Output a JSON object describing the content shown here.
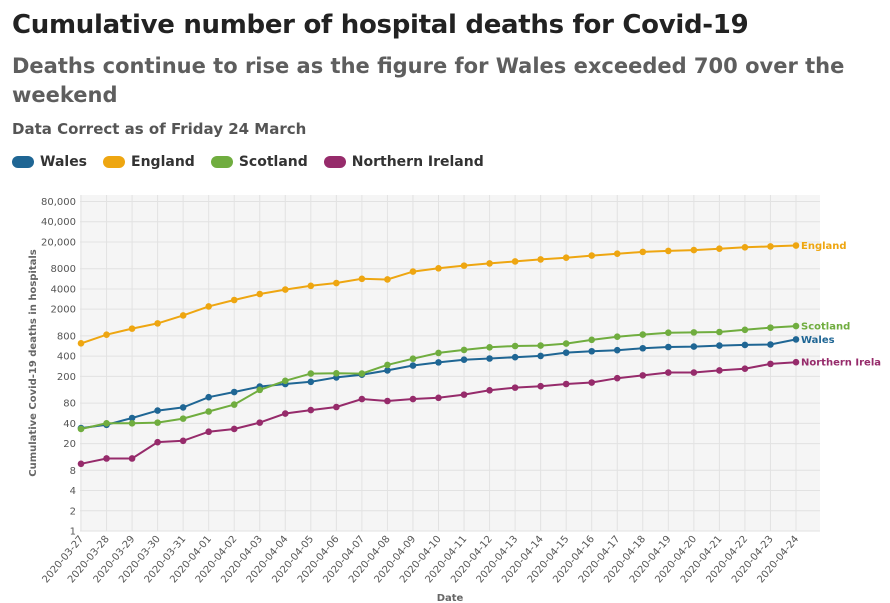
{
  "header": {
    "title": "Cumulative number of hospital deaths for Covid-19",
    "subtitle": "Deaths continue to rise as the figure for Wales exceeded 700 over the weekend",
    "note": "Data Correct as of Friday 24 March"
  },
  "legend": [
    {
      "label": "Wales",
      "color": "#1f6694"
    },
    {
      "label": "England",
      "color": "#eea611"
    },
    {
      "label": "Scotland",
      "color": "#70ad3f"
    },
    {
      "label": "Northern Ireland",
      "color": "#962b6b"
    }
  ],
  "chart_data": {
    "type": "line",
    "xlabel": "Date",
    "ylabel": "Cumulative Covid-19 deaths in hospitals",
    "yscale": "log",
    "ylim": [
      1,
      100000
    ],
    "yticks": [
      1,
      2,
      4,
      8,
      20,
      40,
      80,
      200,
      400,
      800,
      2000,
      4000,
      8000,
      20000,
      40000,
      80000
    ],
    "ytick_labels": [
      "1",
      "2",
      "4",
      "8",
      "20",
      "40",
      "80",
      "200",
      "400",
      "800",
      "2000",
      "4000",
      "8000",
      "20,000",
      "40,000",
      "80,000"
    ],
    "grid": true,
    "x": [
      "2020-03-27",
      "2020-03-28",
      "2020-03-29",
      "2020-03-30",
      "2020-03-31",
      "2020-04-01",
      "2020-04-02",
      "2020-04-03",
      "2020-04-04",
      "2020-04-05",
      "2020-04-06",
      "2020-04-07",
      "2020-04-08",
      "2020-04-09",
      "2020-04-10",
      "2020-04-11",
      "2020-04-12",
      "2020-04-13",
      "2020-04-14",
      "2020-04-15",
      "2020-04-16",
      "2020-04-17",
      "2020-04-18",
      "2020-04-19",
      "2020-04-20",
      "2020-04-21",
      "2020-04-22",
      "2020-04-23",
      "2020-04-24"
    ],
    "series": [
      {
        "name": "Wales",
        "color": "#1f6694",
        "end_label": "Wales",
        "values": [
          34,
          38,
          48,
          62,
          69,
          98,
          117,
          141,
          154,
          166,
          193,
          212,
          245,
          290,
          323,
          354,
          369,
          386,
          403,
          451,
          473,
          491,
          524,
          547,
          555,
          575,
          587,
          596,
          709
        ]
      },
      {
        "name": "England",
        "color": "#eea611",
        "end_label": "England",
        "values": [
          620,
          834,
          1027,
          1229,
          1613,
          2197,
          2738,
          3364,
          3917,
          4452,
          4897,
          5655,
          5533,
          7248,
          8114,
          8893,
          9594,
          10261,
          11005,
          11656,
          12539,
          13389,
          14244,
          14715,
          15144,
          15905,
          16663,
          17168,
          17710
        ]
      },
      {
        "name": "Scotland",
        "color": "#70ad3f",
        "end_label": "Scotland",
        "values": [
          33,
          40,
          40,
          41,
          47,
          60,
          76,
          126,
          172,
          220,
          222,
          220,
          296,
          366,
          447,
          495,
          542,
          566,
          575,
          615,
          699,
          779,
          837,
          893,
          903,
          915,
          985,
          1062,
          1120
        ]
      },
      {
        "name": "Northern Ireland",
        "color": "#962b6b",
        "end_label": "Northern Irela",
        "values": [
          10,
          12,
          12,
          21,
          22,
          30,
          33,
          41,
          56,
          63,
          70,
          92,
          86,
          92,
          96,
          107,
          124,
          136,
          143,
          154,
          162,
          188,
          207,
          228,
          228,
          245,
          260,
          307,
          325
        ]
      }
    ]
  }
}
